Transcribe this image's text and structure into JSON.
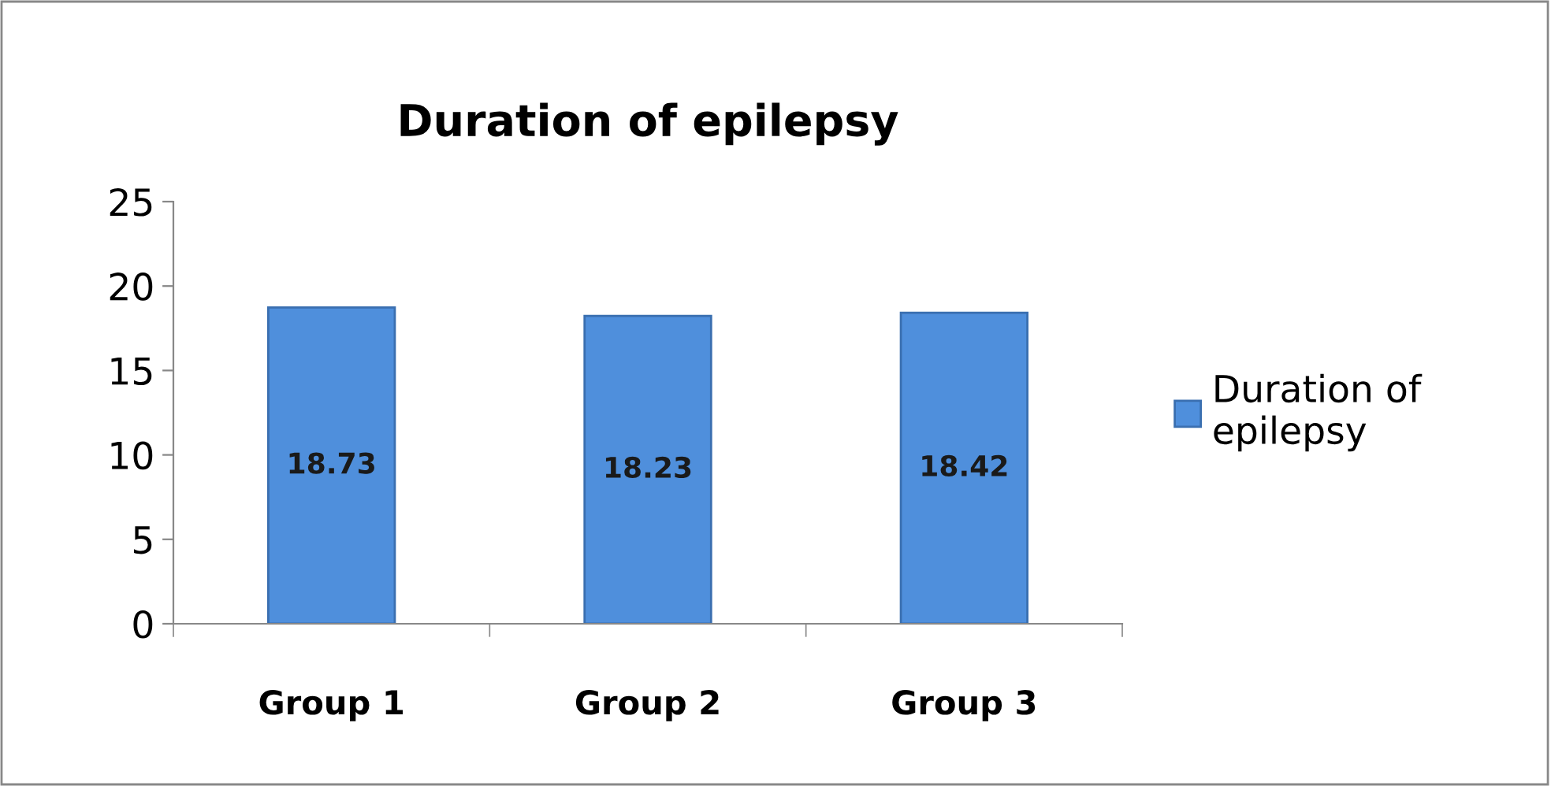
{
  "chart_data": {
    "type": "bar",
    "title": "Duration of epilepsy",
    "categories": [
      "Group 1",
      "Group 2",
      "Group 3"
    ],
    "series": [
      {
        "name": "Duration of\nepilepsy",
        "color": "#4f8fdc",
        "values": [
          18.73,
          18.23,
          18.42
        ]
      }
    ],
    "ylim": [
      0,
      25
    ],
    "yticks": [
      0,
      5,
      10,
      15,
      20,
      25
    ],
    "grid": false,
    "legend": "right",
    "data_labels": true
  }
}
